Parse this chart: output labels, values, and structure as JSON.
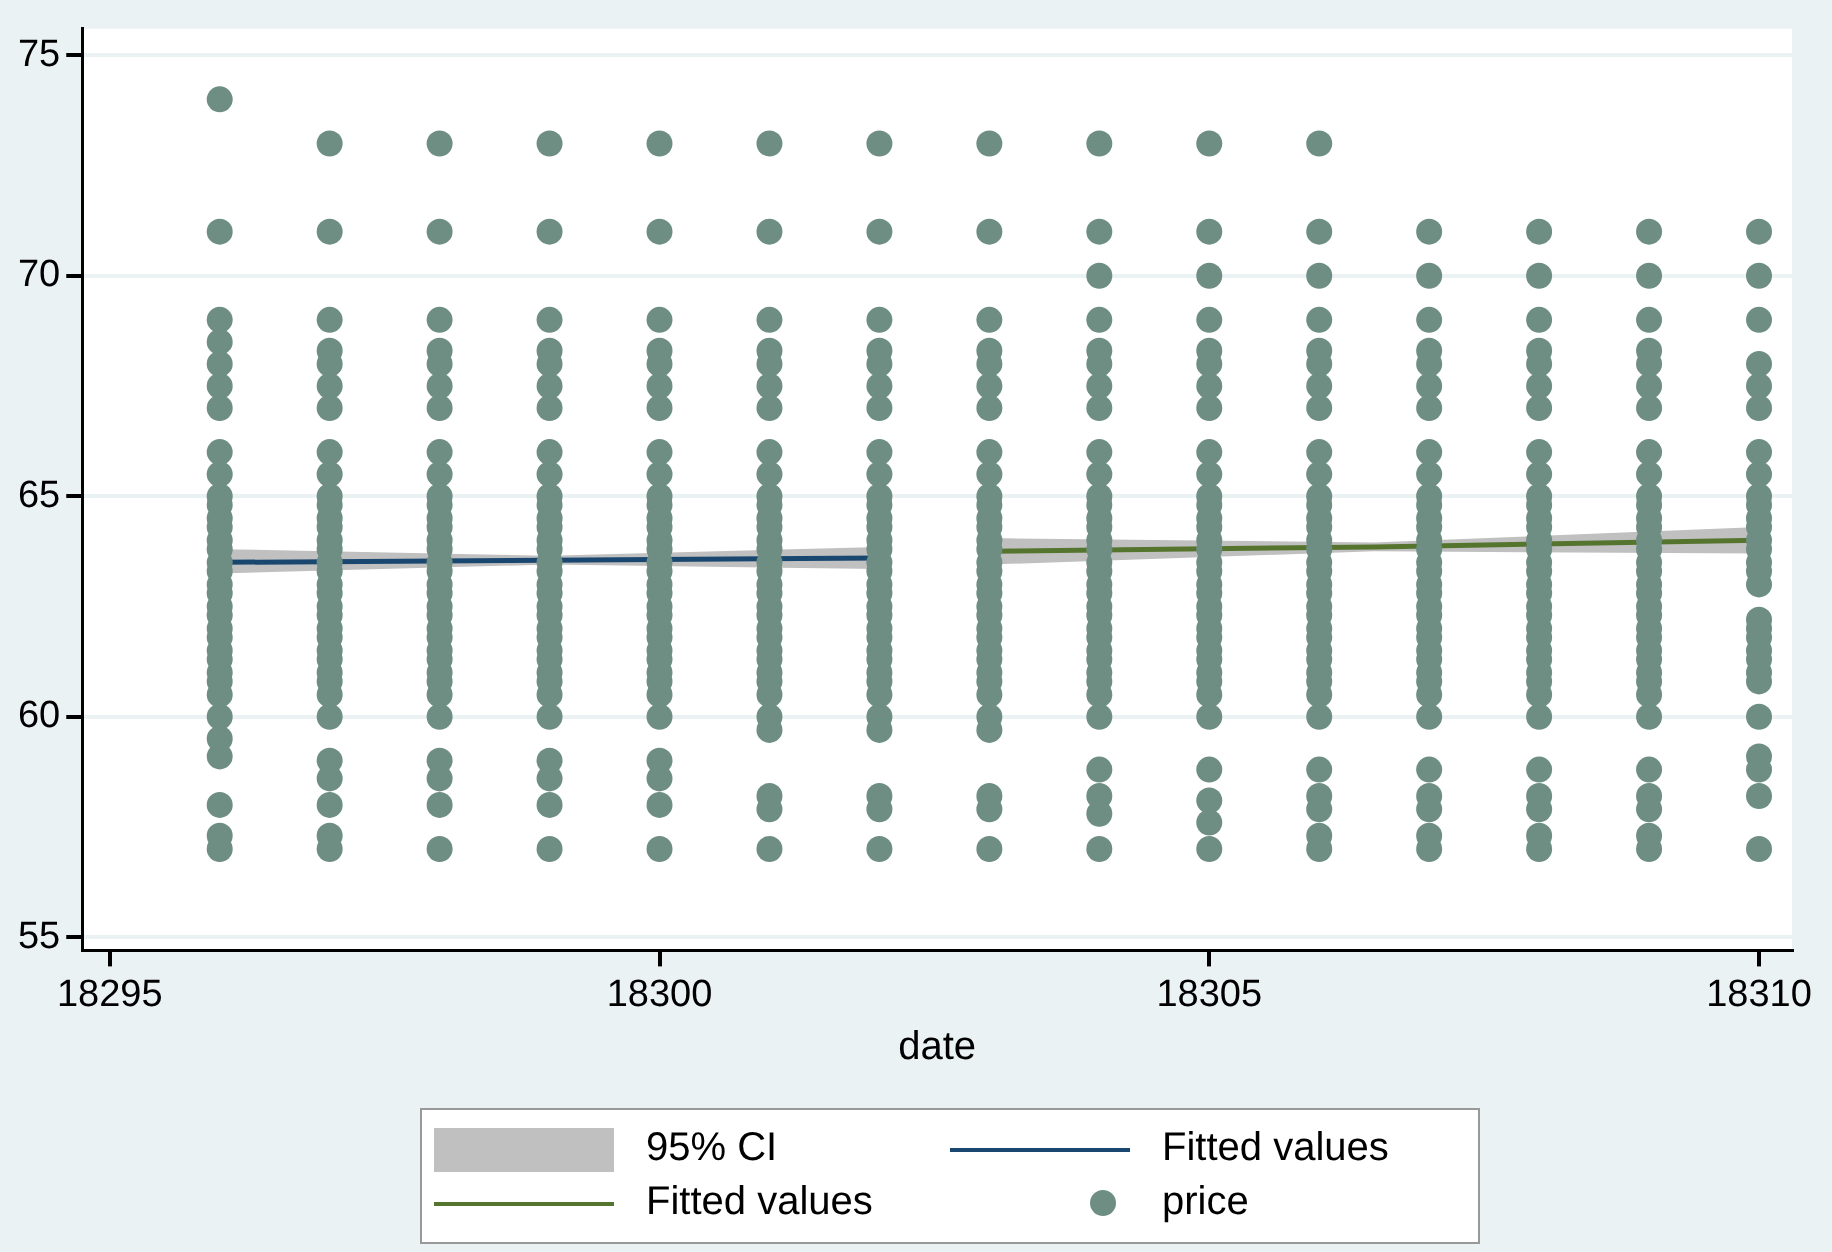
{
  "chart_data": {
    "type": "scatter",
    "xlabel": "date",
    "xlim": [
      18294.75,
      18310.3
    ],
    "ylim": [
      54.7,
      75.6
    ],
    "xticks": [
      18295,
      18300,
      18305,
      18310
    ],
    "yticks": [
      55,
      60,
      65,
      70,
      75
    ],
    "grid": "y",
    "legend": "bottom",
    "annotations": [
      "95% CI"
    ],
    "series": [
      {
        "type": "line",
        "name": "Fitted values",
        "color": "#1a476f",
        "x": [
          18296,
          18299,
          18302
        ],
        "values": [
          63.5,
          63.55,
          63.6
        ],
        "lower": [
          63.25,
          63.45,
          63.35
        ],
        "upper": [
          63.8,
          63.65,
          63.85
        ]
      },
      {
        "type": "line",
        "name": "Fitted values",
        "color": "#55752f",
        "x": [
          18303,
          18306.5,
          18310
        ],
        "values": [
          63.75,
          63.85,
          64.0
        ],
        "lower": [
          63.45,
          63.75,
          63.7
        ],
        "upper": [
          64.05,
          63.95,
          64.3
        ]
      },
      {
        "name": "price",
        "color": "#6e8e84",
        "marker": "circle",
        "x": [
          18296,
          18296,
          18296,
          18296,
          18296,
          18296,
          18296,
          18296,
          18296,
          18296,
          18296,
          18296,
          18296,
          18296,
          18296,
          18296,
          18296,
          18296,
          18296,
          18296,
          18296,
          18296,
          18296,
          18296,
          18296,
          18296,
          18296,
          18296,
          18296,
          18296,
          18296,
          18296,
          18296,
          18296,
          18297,
          18297,
          18297,
          18297,
          18297,
          18297,
          18297,
          18297,
          18297,
          18297,
          18297,
          18297,
          18297,
          18297,
          18297,
          18297,
          18297,
          18297,
          18297,
          18297,
          18297,
          18297,
          18297,
          18297,
          18297,
          18297,
          18297,
          18297,
          18297,
          18297,
          18297,
          18297,
          18297,
          18297,
          18298,
          18298,
          18298,
          18298,
          18298,
          18298,
          18298,
          18298,
          18298,
          18298,
          18298,
          18298,
          18298,
          18298,
          18298,
          18298,
          18298,
          18298,
          18298,
          18298,
          18298,
          18298,
          18298,
          18298,
          18298,
          18298,
          18298,
          18298,
          18298,
          18298,
          18298,
          18298,
          18298,
          18299,
          18299,
          18299,
          18299,
          18299,
          18299,
          18299,
          18299,
          18299,
          18299,
          18299,
          18299,
          18299,
          18299,
          18299,
          18299,
          18299,
          18299,
          18299,
          18299,
          18299,
          18299,
          18299,
          18299,
          18299,
          18299,
          18299,
          18299,
          18299,
          18299,
          18299,
          18299,
          18299,
          18300,
          18300,
          18300,
          18300,
          18300,
          18300,
          18300,
          18300,
          18300,
          18300,
          18300,
          18300,
          18300,
          18300,
          18300,
          18300,
          18300,
          18300,
          18300,
          18300,
          18300,
          18300,
          18300,
          18300,
          18300,
          18300,
          18300,
          18300,
          18300,
          18300,
          18300,
          18300,
          18300,
          18301,
          18301,
          18301,
          18301,
          18301,
          18301,
          18301,
          18301,
          18301,
          18301,
          18301,
          18301,
          18301,
          18301,
          18301,
          18301,
          18301,
          18301,
          18301,
          18301,
          18301,
          18301,
          18301,
          18301,
          18301,
          18301,
          18301,
          18301,
          18301,
          18301,
          18301,
          18301,
          18301,
          18302,
          18302,
          18302,
          18302,
          18302,
          18302,
          18302,
          18302,
          18302,
          18302,
          18302,
          18302,
          18302,
          18302,
          18302,
          18302,
          18302,
          18302,
          18302,
          18302,
          18302,
          18302,
          18302,
          18302,
          18302,
          18302,
          18302,
          18302,
          18302,
          18302,
          18302,
          18302,
          18302,
          18303,
          18303,
          18303,
          18303,
          18303,
          18303,
          18303,
          18303,
          18303,
          18303,
          18303,
          18303,
          18303,
          18303,
          18303,
          18303,
          18303,
          18303,
          18303,
          18303,
          18303,
          18303,
          18303,
          18303,
          18303,
          18303,
          18303,
          18303,
          18303,
          18303,
          18303,
          18303,
          18303,
          18304,
          18304,
          18304,
          18304,
          18304,
          18304,
          18304,
          18304,
          18304,
          18304,
          18304,
          18304,
          18304,
          18304,
          18304,
          18304,
          18304,
          18304,
          18304,
          18304,
          18304,
          18304,
          18304,
          18304,
          18304,
          18304,
          18304,
          18304,
          18304,
          18304,
          18304,
          18304,
          18304,
          18304,
          18305,
          18305,
          18305,
          18305,
          18305,
          18305,
          18305,
          18305,
          18305,
          18305,
          18305,
          18305,
          18305,
          18305,
          18305,
          18305,
          18305,
          18305,
          18305,
          18305,
          18305,
          18305,
          18305,
          18305,
          18305,
          18305,
          18305,
          18305,
          18305,
          18305,
          18305,
          18305,
          18305,
          18305,
          18306,
          18306,
          18306,
          18306,
          18306,
          18306,
          18306,
          18306,
          18306,
          18306,
          18306,
          18306,
          18306,
          18306,
          18306,
          18306,
          18306,
          18306,
          18306,
          18306,
          18306,
          18306,
          18306,
          18306,
          18306,
          18306,
          18306,
          18306,
          18306,
          18306,
          18306,
          18306,
          18306,
          18306,
          18306,
          18307,
          18307,
          18307,
          18307,
          18307,
          18307,
          18307,
          18307,
          18307,
          18307,
          18307,
          18307,
          18307,
          18307,
          18307,
          18307,
          18307,
          18307,
          18307,
          18307,
          18307,
          18307,
          18307,
          18307,
          18307,
          18307,
          18307,
          18307,
          18307,
          18307,
          18307,
          18307,
          18307,
          18307,
          18308,
          18308,
          18308,
          18308,
          18308,
          18308,
          18308,
          18308,
          18308,
          18308,
          18308,
          18308,
          18308,
          18308,
          18308,
          18308,
          18308,
          18308,
          18308,
          18308,
          18308,
          18308,
          18308,
          18308,
          18308,
          18308,
          18308,
          18308,
          18308,
          18308,
          18308,
          18308,
          18308,
          18308,
          18309,
          18309,
          18309,
          18309,
          18309,
          18309,
          18309,
          18309,
          18309,
          18309,
          18309,
          18309,
          18309,
          18309,
          18309,
          18309,
          18309,
          18309,
          18309,
          18309,
          18309,
          18309,
          18309,
          18309,
          18309,
          18309,
          18309,
          18309,
          18309,
          18309,
          18309,
          18309,
          18309,
          18309,
          18310,
          18310,
          18310,
          18310,
          18310,
          18310,
          18310,
          18310,
          18310,
          18310,
          18310,
          18310,
          18310,
          18310,
          18310,
          18310,
          18310,
          18310,
          18310,
          18310,
          18310,
          18310,
          18310,
          18310,
          18310,
          18310,
          18310,
          18310,
          18310
        ],
        "values": [
          74,
          71,
          69,
          68.5,
          68,
          67.5,
          67,
          60.5,
          60.8,
          61,
          61.3,
          61.5,
          61.8,
          62,
          62.3,
          62.5,
          62.8,
          63,
          63.3,
          63.5,
          63.8,
          64,
          64.3,
          64.5,
          64.8,
          65,
          65.5,
          66,
          60,
          59.5,
          59.1,
          58,
          57.3,
          57,
          73,
          71,
          69,
          68.3,
          68,
          67.5,
          67,
          60.5,
          60.8,
          61,
          61.3,
          61.5,
          61.8,
          62,
          62.3,
          62.5,
          62.8,
          63,
          63.3,
          63.5,
          63.8,
          64,
          64.3,
          64.5,
          64.8,
          65,
          65.5,
          66,
          60,
          59,
          58.6,
          58,
          57.3,
          57,
          73,
          71,
          69,
          68.3,
          68,
          67.5,
          67,
          60.5,
          60.8,
          61,
          61.3,
          61.5,
          61.8,
          62,
          62.3,
          62.5,
          62.8,
          63,
          63.3,
          63.5,
          63.8,
          64,
          64.3,
          64.5,
          64.8,
          65,
          65.5,
          66,
          60,
          59,
          58.6,
          58,
          57,
          73,
          71,
          69,
          68.3,
          68,
          67.5,
          67,
          60.5,
          60.8,
          61,
          61.3,
          61.5,
          61.8,
          62,
          62.3,
          62.5,
          62.8,
          63,
          63.3,
          63.5,
          63.8,
          64,
          64.3,
          64.5,
          64.8,
          65,
          65.5,
          66,
          60,
          59,
          58.6,
          58,
          57,
          73,
          71,
          69,
          68.3,
          68,
          67.5,
          67,
          60.5,
          60.8,
          61,
          61.3,
          61.5,
          61.8,
          62,
          62.3,
          62.5,
          62.8,
          63,
          63.3,
          63.5,
          63.8,
          64,
          64.3,
          64.5,
          64.8,
          65,
          65.5,
          66,
          60,
          59,
          58.6,
          58,
          57,
          73,
          71,
          69,
          68.3,
          68,
          67.5,
          67,
          60.5,
          60.8,
          61,
          61.3,
          61.5,
          61.8,
          62,
          62.3,
          62.5,
          62.8,
          63,
          63.3,
          63.5,
          63.8,
          64,
          64.3,
          64.5,
          64.8,
          65,
          65.5,
          66,
          60,
          59.7,
          58.2,
          57.9,
          57,
          73,
          71,
          69,
          68.3,
          68,
          67.5,
          67,
          60.5,
          60.8,
          61,
          61.3,
          61.5,
          61.8,
          62,
          62.3,
          62.5,
          62.8,
          63,
          63.3,
          63.5,
          63.8,
          64,
          64.3,
          64.5,
          64.8,
          65,
          65.5,
          66,
          60,
          59.7,
          58.2,
          57.9,
          57,
          73,
          71,
          69,
          68.3,
          68,
          67.5,
          67,
          60.5,
          60.8,
          61,
          61.3,
          61.5,
          61.8,
          62,
          62.3,
          62.5,
          62.8,
          63,
          63.3,
          63.5,
          63.8,
          64,
          64.3,
          64.5,
          64.8,
          65,
          65.5,
          66,
          60,
          59.7,
          58.2,
          57.9,
          57,
          73,
          71,
          70,
          69,
          68.3,
          68,
          67.5,
          67,
          60.5,
          60.8,
          61,
          61.3,
          61.5,
          61.8,
          62,
          62.3,
          62.5,
          62.8,
          63,
          63.3,
          63.5,
          63.8,
          64,
          64.3,
          64.5,
          64.8,
          65,
          65.5,
          66,
          60,
          58.8,
          58.2,
          57.8,
          57,
          73,
          71,
          70,
          69,
          68.3,
          68,
          67.5,
          67,
          60.5,
          60.8,
          61,
          61.3,
          61.5,
          61.8,
          62,
          62.3,
          62.5,
          62.8,
          63,
          63.3,
          63.5,
          63.8,
          64,
          64.3,
          64.5,
          64.8,
          65,
          65.5,
          66,
          60,
          58.8,
          58.1,
          57.6,
          57,
          73,
          71,
          70,
          69,
          68.3,
          68,
          67.5,
          67,
          60.5,
          60.8,
          61,
          61.3,
          61.5,
          61.8,
          62,
          62.3,
          62.5,
          62.8,
          63,
          63.3,
          63.5,
          63.8,
          64,
          64.3,
          64.5,
          64.8,
          65,
          65.5,
          66,
          60,
          58.8,
          58.2,
          57.9,
          57.3,
          57,
          71,
          70,
          69,
          68.3,
          68,
          67.5,
          67,
          60.5,
          60.8,
          61,
          61.3,
          61.5,
          61.8,
          62,
          62.3,
          62.5,
          62.8,
          63,
          63.3,
          63.5,
          63.8,
          64,
          64.3,
          64.5,
          64.8,
          65,
          65.5,
          66,
          60,
          58.8,
          58.2,
          57.9,
          57.3,
          57,
          71,
          70,
          69,
          68.3,
          68,
          67.5,
          67,
          60.5,
          60.8,
          61,
          61.3,
          61.5,
          61.8,
          62,
          62.3,
          62.5,
          62.8,
          63,
          63.3,
          63.5,
          63.8,
          64,
          64.3,
          64.5,
          64.8,
          65,
          65.5,
          66,
          60,
          58.8,
          58.2,
          57.9,
          57.3,
          57,
          71,
          70,
          69,
          68.3,
          68,
          67.5,
          67,
          60.5,
          60.8,
          61,
          61.3,
          61.5,
          61.8,
          62,
          62.3,
          62.5,
          62.8,
          63,
          63.3,
          63.5,
          63.8,
          64,
          64.3,
          64.5,
          64.8,
          65,
          65.5,
          66,
          60,
          58.8,
          58.2,
          57.9,
          57.3,
          57,
          71,
          70,
          69,
          68,
          67.5,
          67,
          66,
          65.5,
          65,
          64.8,
          64.5,
          64.3,
          64,
          63.8,
          63.5,
          63.3,
          63,
          62.2,
          62,
          61.8,
          61.5,
          61.3,
          61,
          60.8,
          60,
          59.1,
          58.8,
          58.2,
          57
        ]
      }
    ]
  }
}
